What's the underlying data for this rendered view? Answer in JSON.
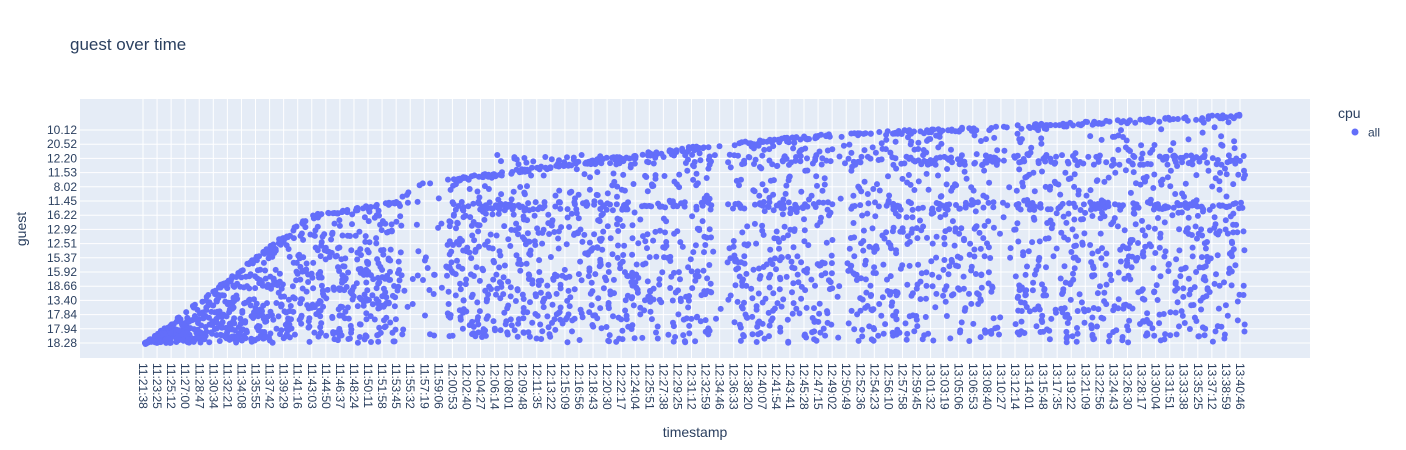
{
  "chart_data": {
    "type": "scatter",
    "title": "guest over time",
    "xlabel": "timestamp",
    "ylabel": "guest",
    "y_categories": [
      "18.28",
      "17.94",
      "17.84",
      "13.40",
      "18.66",
      "15.92",
      "15.37",
      "12.51",
      "12.92",
      "16.22",
      "11.45",
      "8.02",
      "11.53",
      "12.20",
      "20.52",
      "10.12"
    ],
    "x_ticks": [
      "11:21:38",
      "11:23:25",
      "11:25:12",
      "11:27:00",
      "11:28:47",
      "11:30:34",
      "11:32:21",
      "11:34:08",
      "11:35:55",
      "11:37:42",
      "11:39:29",
      "11:41:16",
      "11:43:03",
      "11:44:50",
      "11:46:37",
      "11:48:24",
      "11:50:11",
      "11:51:58",
      "11:53:45",
      "11:55:32",
      "11:57:19",
      "11:59:06",
      "12:00:53",
      "12:02:40",
      "12:04:27",
      "12:06:14",
      "12:08:01",
      "12:09:48",
      "12:11:35",
      "12:13:22",
      "12:15:09",
      "12:16:56",
      "12:18:43",
      "12:20:30",
      "12:22:17",
      "12:24:04",
      "12:25:51",
      "12:27:38",
      "12:29:25",
      "12:31:12",
      "12:32:59",
      "12:34:46",
      "12:36:33",
      "12:38:20",
      "12:40:07",
      "12:41:54",
      "12:43:41",
      "12:45:28",
      "12:47:15",
      "12:49:02",
      "12:50:49",
      "12:52:36",
      "12:54:23",
      "12:56:10",
      "12:57:58",
      "12:59:45",
      "13:01:32",
      "13:03:19",
      "13:05:06",
      "13:06:53",
      "13:08:40",
      "13:10:27",
      "13:12:14",
      "13:14:01",
      "13:15:48",
      "13:17:35",
      "13:19:22",
      "13:21:09",
      "13:22:56",
      "13:24:43",
      "13:26:30",
      "13:28:17",
      "13:30:04",
      "13:31:51",
      "13:33:38",
      "13:35:25",
      "13:37:12",
      "13:38:59",
      "13:40:46"
    ],
    "grid": true,
    "legend": {
      "title": "cpu",
      "placement": "top-right"
    },
    "series": [
      {
        "name": "all",
        "color": "#636efa",
        "marker": "circle"
      }
    ],
    "background_color": "#e5ecf6"
  }
}
